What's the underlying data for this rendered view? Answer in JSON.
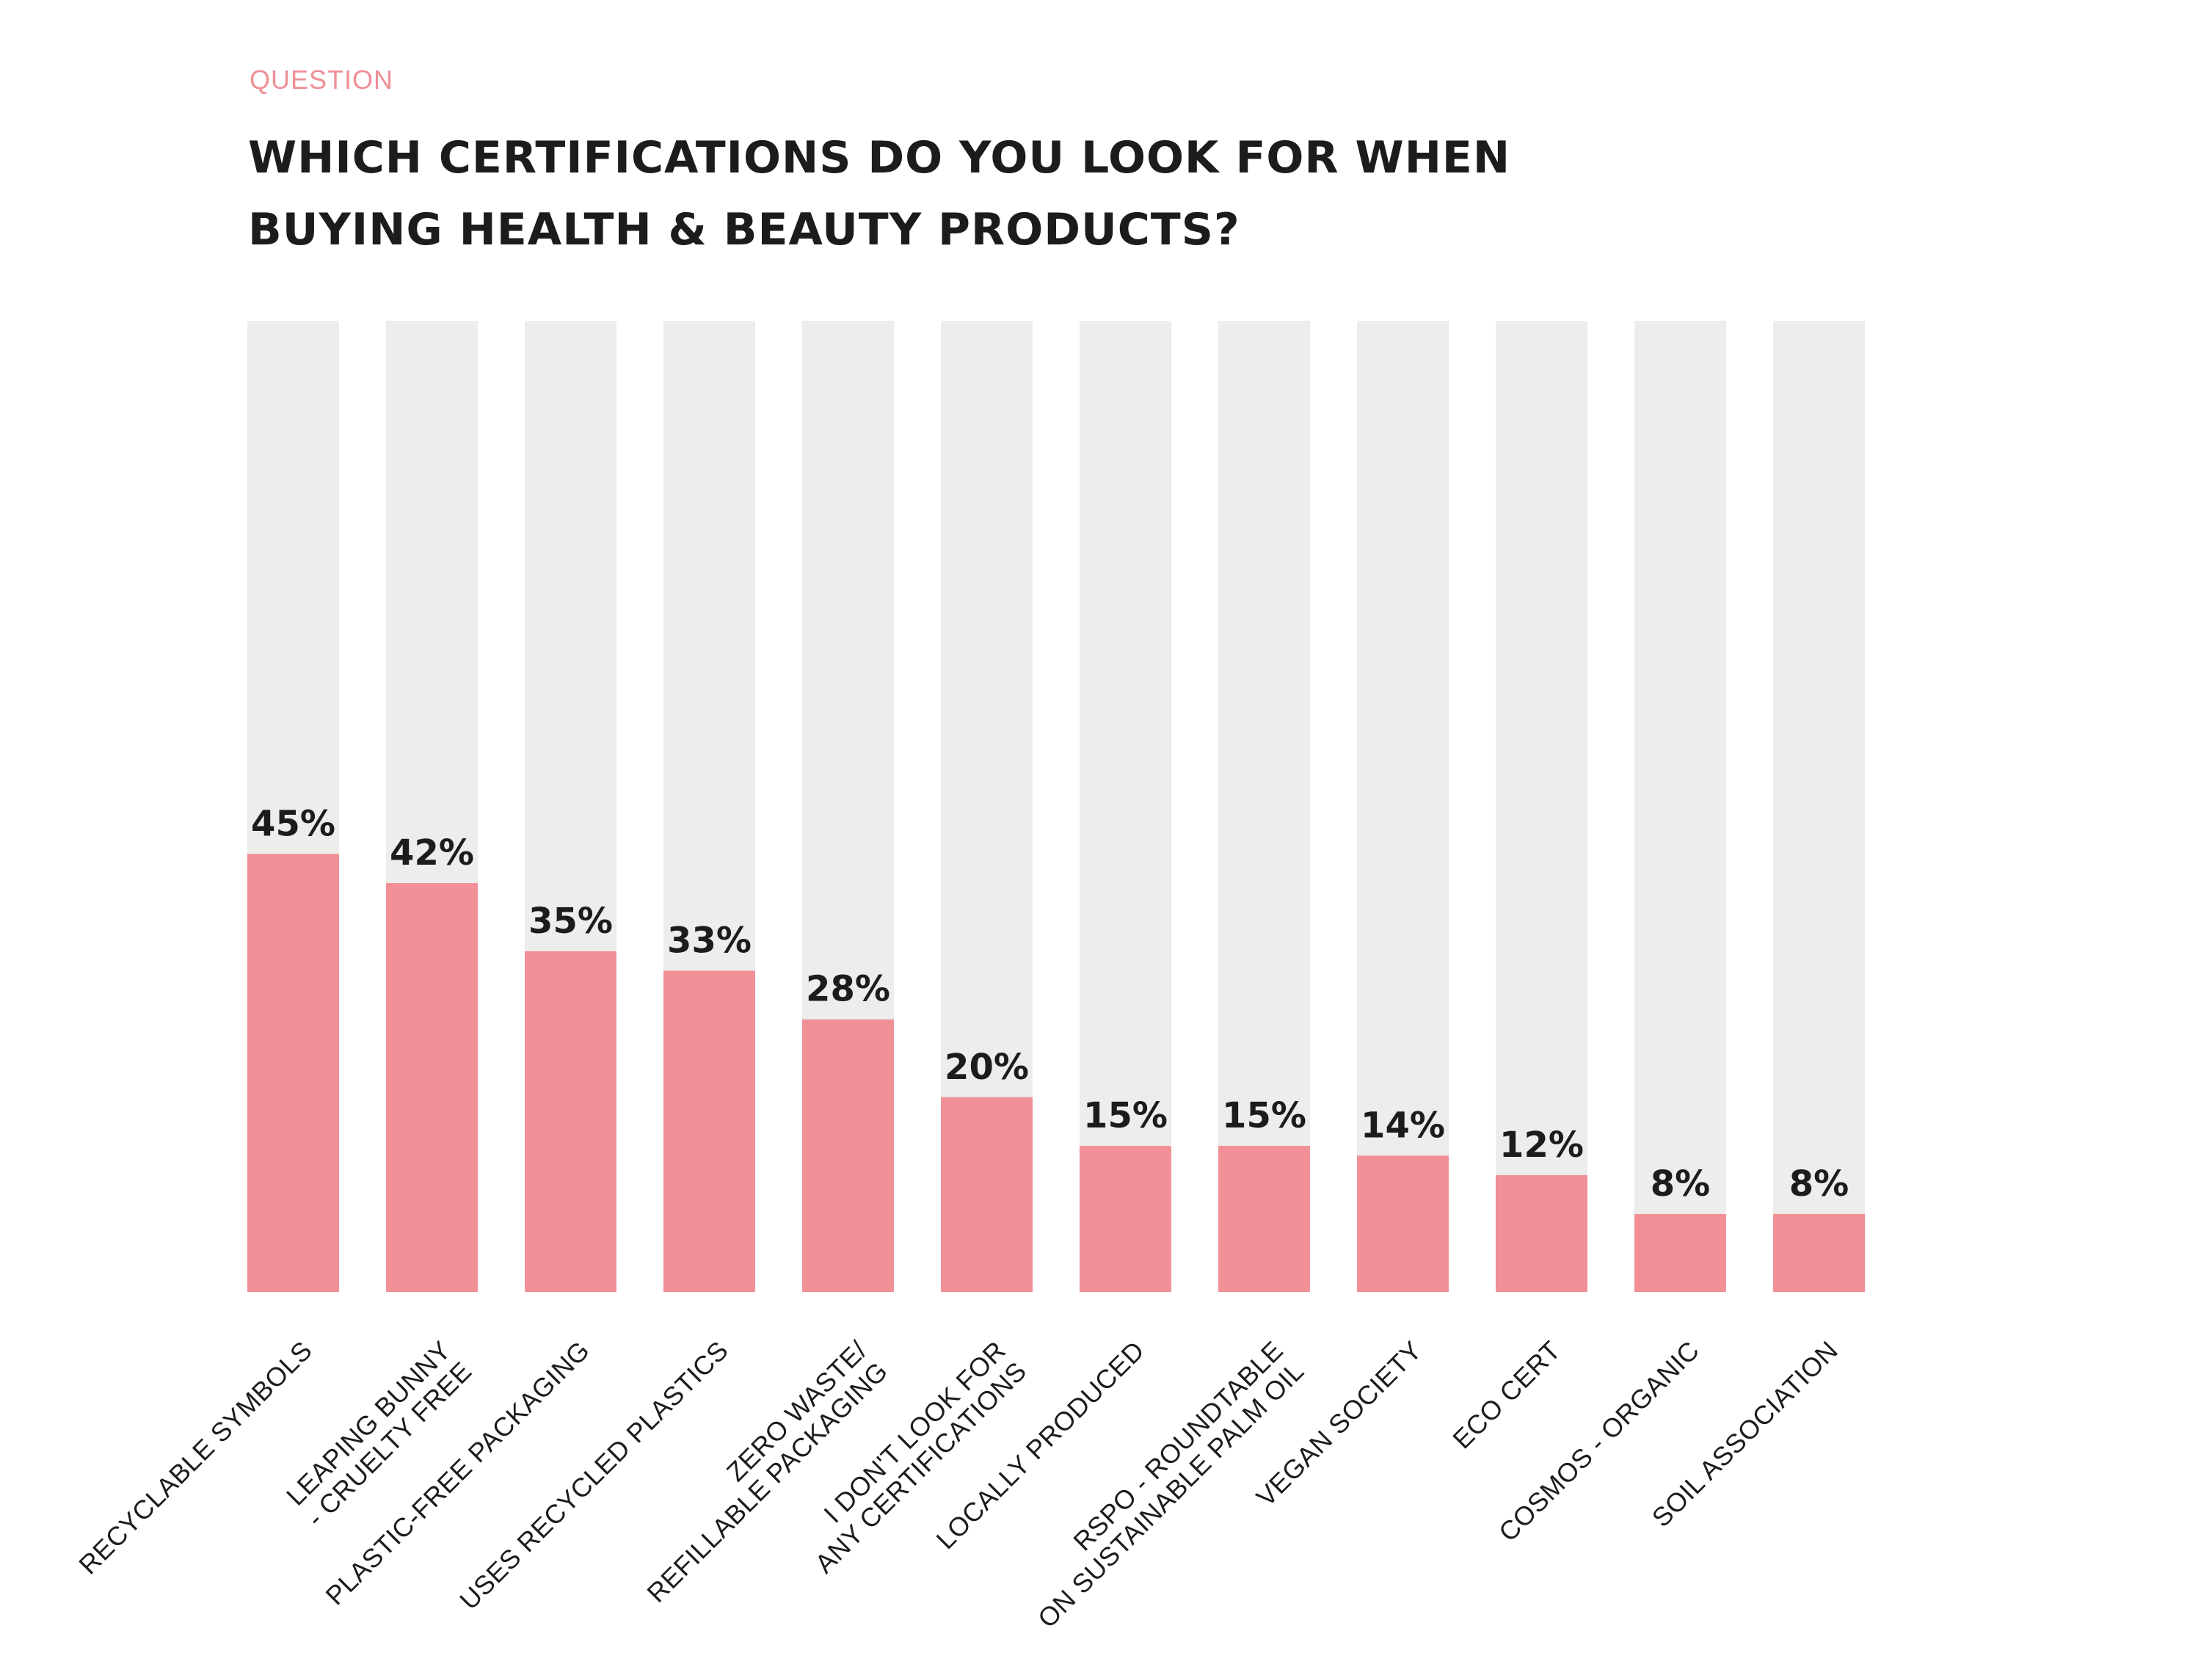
{
  "header": {
    "eyebrow": "QUESTION",
    "title": "WHICH CERTIFICATIONS DO YOU LOOK FOR WHEN BUYING HEALTH & BEAUTY PRODUCTS?"
  },
  "colors": {
    "bar_fill": "#f19096",
    "track_fill": "#ededeb",
    "eyebrow": "#ee8f97",
    "text": "#1c1c1c"
  },
  "chart_data": {
    "type": "bar",
    "title": "WHICH CERTIFICATIONS DO YOU LOOK FOR WHEN BUYING HEALTH & BEAUTY PRODUCTS?",
    "xlabel": "",
    "ylabel": "",
    "ylim": [
      0,
      100
    ],
    "grid": false,
    "categories": [
      [
        "RECYCLABLE SYMBOLS"
      ],
      [
        "LEAPING BUNNY",
        "- CRUELTY FREE"
      ],
      [
        "PLASTIC-FREE PACKAGING"
      ],
      [
        "USES RECYCLED PLASTICS"
      ],
      [
        "ZERO WASTE/",
        "REFILLABLE PACKAGING"
      ],
      [
        "I DON'T LOOK FOR",
        "ANY CERTIFICATIONS"
      ],
      [
        "LOCALLY PRODUCED"
      ],
      [
        "RSPO - ROUNDTABLE",
        "ON SUSTAINABLE PALM OIL"
      ],
      [
        "VEGAN SOCIETY"
      ],
      [
        "ECO CERT"
      ],
      [
        "COSMOS - ORGANIC"
      ],
      [
        "SOIL ASSOCIATION"
      ]
    ],
    "values": [
      45,
      42,
      35,
      33,
      28,
      20,
      15,
      15,
      14,
      12,
      8,
      8
    ],
    "value_labels": [
      "45%",
      "42%",
      "35%",
      "33%",
      "28%",
      "20%",
      "15%",
      "15%",
      "14%",
      "12%",
      "8%",
      "8%"
    ]
  }
}
